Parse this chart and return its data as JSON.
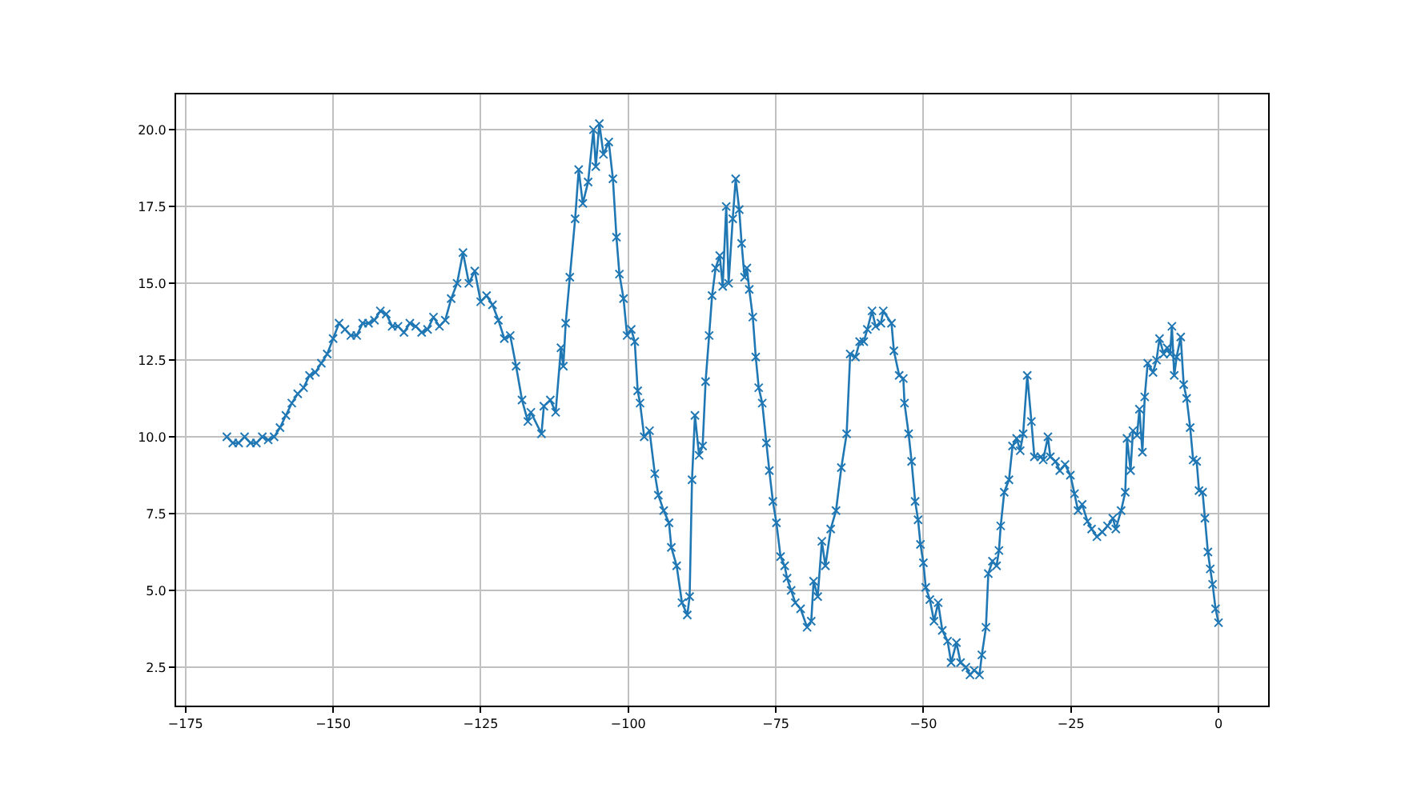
{
  "chart_data": {
    "type": "line",
    "marker": "cross",
    "line_style": "solid",
    "grid": true,
    "xlim": [
      -176.6,
      8.4
    ],
    "ylim": [
      1.25,
      21.15
    ],
    "xticks": [
      {
        "value": -175,
        "label": "−175"
      },
      {
        "value": -150,
        "label": "−150"
      },
      {
        "value": -125,
        "label": "−125"
      },
      {
        "value": -100,
        "label": "−100"
      },
      {
        "value": -75,
        "label": "−75"
      },
      {
        "value": -50,
        "label": "−50"
      },
      {
        "value": -25,
        "label": "−25"
      },
      {
        "value": 0,
        "label": "0"
      }
    ],
    "yticks": [
      {
        "value": 2.5,
        "label": "2.5"
      },
      {
        "value": 5,
        "label": "5.0"
      },
      {
        "value": 7.5,
        "label": "7.5"
      },
      {
        "value": 10,
        "label": "10.0"
      },
      {
        "value": 12.5,
        "label": "12.5"
      },
      {
        "value": 15,
        "label": "15.0"
      },
      {
        "value": 17.5,
        "label": "17.5"
      },
      {
        "value": 20,
        "label": "20.0"
      }
    ],
    "x": [
      -168,
      -167,
      -166,
      -165,
      -164,
      -163,
      -162,
      -161,
      -160,
      -159,
      -158,
      -157,
      -156,
      -155,
      -154,
      -153,
      -152,
      -151,
      -150,
      -149,
      -148,
      -147,
      -146,
      -145,
      -144,
      -143,
      -142,
      -141,
      -140,
      -139,
      -138,
      -137,
      -136,
      -135,
      -134,
      -133,
      -132,
      -131,
      -130,
      -129,
      -128,
      -127,
      -126,
      -125,
      -124,
      -123,
      -122,
      -121,
      -120,
      -119,
      -118,
      -117,
      -116.5,
      -114.7,
      -114.3,
      -113.2,
      -112.3,
      -111.4,
      -111.0,
      -110.6,
      -109.9,
      -109.0,
      -108.4,
      -107.7,
      -106.8,
      -105.9,
      -105.5,
      -104.9,
      -104.2,
      -103.3,
      -102.6,
      -102.0,
      -101.5,
      -100.8,
      -100.2,
      -99.5,
      -98.9,
      -98.4,
      -98.0,
      -97.3,
      -96.4,
      -95.5,
      -94.9,
      -94.0,
      -93.1,
      -92.7,
      -91.8,
      -90.9,
      -90.0,
      -89.6,
      -89.2,
      -88.7,
      -88.0,
      -87.4,
      -86.9,
      -86.3,
      -85.8,
      -85.2,
      -84.5,
      -84.0,
      -83.4,
      -83.0,
      -82.3,
      -81.8,
      -81.2,
      -80.8,
      -80.3,
      -79.9,
      -79.5,
      -78.9,
      -78.4,
      -77.9,
      -77.3,
      -76.6,
      -76.1,
      -75.5,
      -74.9,
      -74.2,
      -73.5,
      -73.1,
      -72.4,
      -71.7,
      -70.8,
      -69.7,
      -69.0,
      -68.6,
      -67.9,
      -67.2,
      -66.6,
      -65.7,
      -64.8,
      -63.9,
      -63.0,
      -62.4,
      -61.5,
      -60.8,
      -60.1,
      -59.5,
      -58.7,
      -58.1,
      -57.2,
      -56.8,
      -55.4,
      -55.0,
      -54.1,
      -53.4,
      -53.2,
      -52.5,
      -52.0,
      -51.4,
      -50.9,
      -50.5,
      -50.0,
      -49.6,
      -48.9,
      -48.2,
      -47.5,
      -46.8,
      -45.9,
      -45.3,
      -44.4,
      -43.7,
      -42.8,
      -42.1,
      -41.4,
      -40.5,
      -40.1,
      -39.4,
      -39.0,
      -38.3,
      -37.6,
      -37.2,
      -36.9,
      -36.3,
      -35.5,
      -34.9,
      -34.2,
      -33.6,
      -33.1,
      -32.4,
      -31.7,
      -31.2,
      -30.1,
      -29.7,
      -28.9,
      -28.5,
      -27.6,
      -26.9,
      -26.0,
      -25.1,
      -24.4,
      -23.8,
      -23.1,
      -22.2,
      -21.5,
      -20.6,
      -19.7,
      -18.8,
      -17.9,
      -17.4,
      -16.5,
      -15.8,
      -15.5,
      -14.9,
      -14.5,
      -13.8,
      -13.4,
      -12.9,
      -12.5,
      -12.0,
      -11.1,
      -10.5,
      -10.0,
      -9.3,
      -8.7,
      -8.2,
      -7.9,
      -7.5,
      -7.1,
      -6.4,
      -5.9,
      -5.4,
      -4.8,
      -4.3,
      -3.7,
      -3.3,
      -2.7,
      -2.3,
      -1.8,
      -1.4,
      -1.0,
      -0.5,
      0.0
    ],
    "series": [
      {
        "color": "#1f77b4",
        "values": [
          10.0,
          9.8,
          9.8,
          10.0,
          9.8,
          9.8,
          10.0,
          9.9,
          10.0,
          10.3,
          10.7,
          11.1,
          11.4,
          11.6,
          12.0,
          12.1,
          12.4,
          12.7,
          13.2,
          13.7,
          13.5,
          13.3,
          13.3,
          13.7,
          13.7,
          13.8,
          14.1,
          14.0,
          13.6,
          13.6,
          13.4,
          13.7,
          13.6,
          13.4,
          13.5,
          13.9,
          13.6,
          13.8,
          14.5,
          15.0,
          16.0,
          15.0,
          15.4,
          14.4,
          14.6,
          14.3,
          13.8,
          13.2,
          13.3,
          12.3,
          11.2,
          10.5,
          10.8,
          10.1,
          11.0,
          11.2,
          10.8,
          12.9,
          12.3,
          13.7,
          15.2,
          17.1,
          18.7,
          17.6,
          18.3,
          20.0,
          18.8,
          20.2,
          19.2,
          19.6,
          18.4,
          16.5,
          15.3,
          14.5,
          13.3,
          13.5,
          13.1,
          11.5,
          11.1,
          10.0,
          10.2,
          8.8,
          8.1,
          7.6,
          7.2,
          6.4,
          5.8,
          4.6,
          4.2,
          4.8,
          8.6,
          10.7,
          9.4,
          9.7,
          11.8,
          13.3,
          14.6,
          15.5,
          15.9,
          14.9,
          17.5,
          15.0,
          17.1,
          18.4,
          17.4,
          16.3,
          15.2,
          15.5,
          14.8,
          13.9,
          12.6,
          11.6,
          11.1,
          9.8,
          8.9,
          7.9,
          7.2,
          6.1,
          5.8,
          5.4,
          5.0,
          4.6,
          4.4,
          3.8,
          4.0,
          5.3,
          4.8,
          6.6,
          5.8,
          7.0,
          7.6,
          9.0,
          10.1,
          12.7,
          12.6,
          13.1,
          13.1,
          13.5,
          14.1,
          13.6,
          13.7,
          14.1,
          13.7,
          12.8,
          12.0,
          11.9,
          11.1,
          10.1,
          9.2,
          7.9,
          7.3,
          6.5,
          5.9,
          5.1,
          4.7,
          4.0,
          4.6,
          3.7,
          3.35,
          2.65,
          3.3,
          2.65,
          2.5,
          2.25,
          2.4,
          2.25,
          2.9,
          3.8,
          5.55,
          5.95,
          5.8,
          6.3,
          7.1,
          8.2,
          8.6,
          9.7,
          9.95,
          9.55,
          10.1,
          12.0,
          10.5,
          9.35,
          9.35,
          9.25,
          10.0,
          9.35,
          9.2,
          8.9,
          9.1,
          8.75,
          8.15,
          7.6,
          7.8,
          7.25,
          7.0,
          6.75,
          6.9,
          7.1,
          7.35,
          7.0,
          7.6,
          8.2,
          9.95,
          8.9,
          10.2,
          10.05,
          10.9,
          9.5,
          11.3,
          12.4,
          12.1,
          12.5,
          13.2,
          12.7,
          12.9,
          12.7,
          13.6,
          12.0,
          12.6,
          13.25,
          11.7,
          11.25,
          10.3,
          9.25,
          9.2,
          8.25,
          8.2,
          7.35,
          6.25,
          5.7,
          5.2,
          4.4,
          3.95
        ]
      }
    ]
  }
}
